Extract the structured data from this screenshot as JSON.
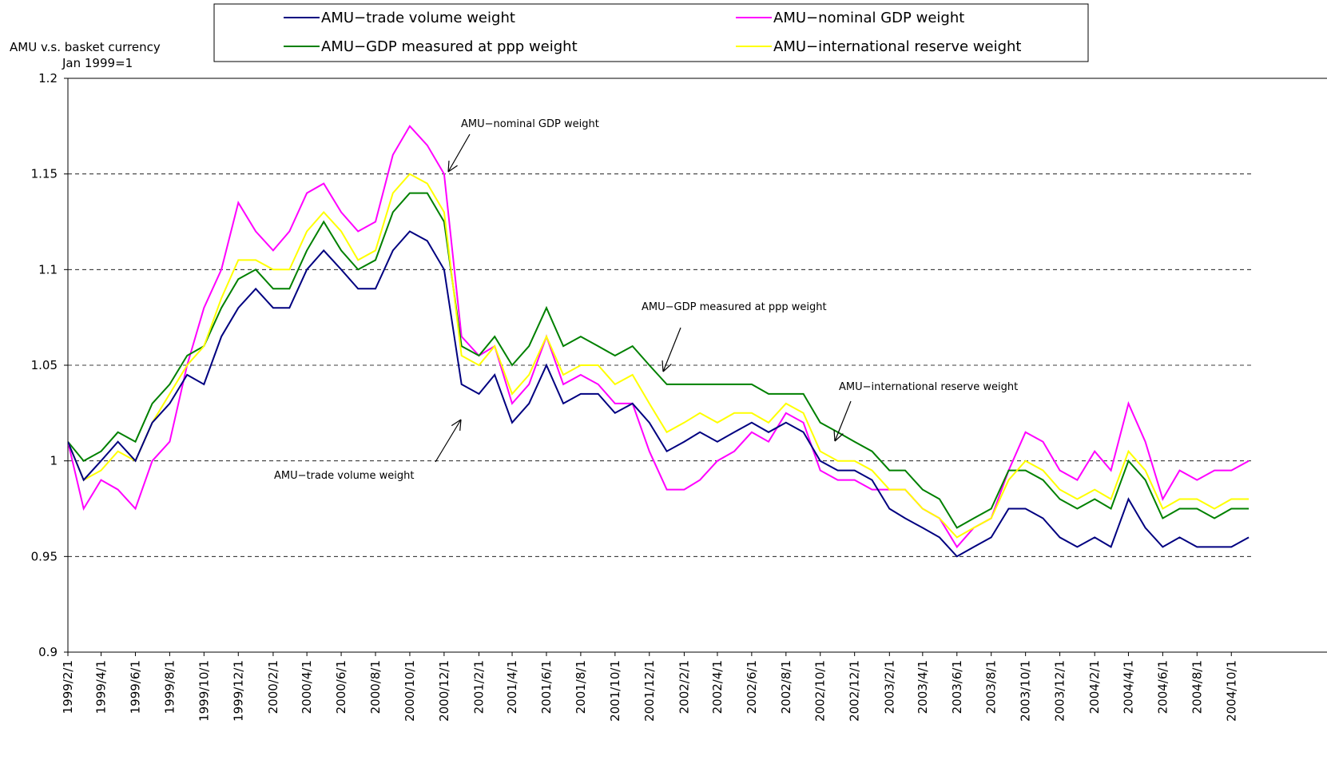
{
  "chart_data": {
    "type": "line",
    "y_label": [
      "AMU  v.s. basket currency",
      "Jan 1999=1"
    ],
    "x": [
      "1999/2/1",
      "1999/3/1",
      "1999/4/1",
      "1999/5/1",
      "1999/6/1",
      "1999/7/1",
      "1999/8/1",
      "1999/9/1",
      "1999/10/1",
      "1999/11/1",
      "1999/12/1",
      "2000/1/1",
      "2000/2/1",
      "2000/3/1",
      "2000/4/1",
      "2000/5/1",
      "2000/6/1",
      "2000/7/1",
      "2000/8/1",
      "2000/9/1",
      "2000/10/1",
      "2000/11/1",
      "2000/12/1",
      "2001/1/1",
      "2001/2/1",
      "2001/3/1",
      "2001/4/1",
      "2001/5/1",
      "2001/6/1",
      "2001/7/1",
      "2001/8/1",
      "2001/9/1",
      "2001/10/1",
      "2001/11/1",
      "2001/12/1",
      "2002/1/1",
      "2002/2/1",
      "2002/3/1",
      "2002/4/1",
      "2002/5/1",
      "2002/6/1",
      "2002/7/1",
      "2002/8/1",
      "2002/9/1",
      "2002/10/1",
      "2002/11/1",
      "2002/12/1",
      "2003/1/1",
      "2003/2/1",
      "2003/3/1",
      "2003/4/1",
      "2003/5/1",
      "2003/6/1",
      "2003/7/1",
      "2003/8/1",
      "2003/9/1",
      "2003/10/1",
      "2003/11/1",
      "2003/12/1",
      "2004/1/1",
      "2004/2/1",
      "2004/3/1",
      "2004/4/1",
      "2004/5/1",
      "2004/6/1",
      "2004/7/1",
      "2004/8/1",
      "2004/9/1",
      "2004/10/1",
      "2004/11/1"
    ],
    "xlim": [
      "1999/2/1",
      "2004/11/8"
    ],
    "xticks": [
      "1999/2/1",
      "1999/4/1",
      "1999/6/1",
      "1999/8/1",
      "1999/10/1",
      "1999/12/1",
      "2000/2/1",
      "2000/4/1",
      "2000/6/1",
      "2000/8/1",
      "2000/10/1",
      "2000/12/1",
      "2001/2/1",
      "2001/4/1",
      "2001/6/1",
      "2001/8/1",
      "2001/10/1",
      "2001/12/1",
      "2002/2/1",
      "2002/4/1",
      "2002/6/1",
      "2002/8/1",
      "2002/10/1",
      "2002/12/1",
      "2003/2/1",
      "2003/4/1",
      "2003/6/1",
      "2003/8/1",
      "2003/10/1",
      "2003/12/1",
      "2004/2/1",
      "2004/4/1",
      "2004/6/1",
      "2004/8/1",
      "2004/10/1"
    ],
    "ylim": [
      0.9,
      1.2
    ],
    "yticks": [
      0.9,
      0.95,
      1,
      1.05,
      1.1,
      1.15,
      1.2
    ],
    "grid": true,
    "series": [
      {
        "name": "AMU−trade volume weight",
        "color": "#000080",
        "values": [
          1.01,
          0.99,
          1.0,
          1.01,
          1.0,
          1.02,
          1.03,
          1.045,
          1.04,
          1.065,
          1.08,
          1.09,
          1.08,
          1.08,
          1.1,
          1.11,
          1.1,
          1.09,
          1.09,
          1.11,
          1.12,
          1.115,
          1.1,
          1.04,
          1.035,
          1.045,
          1.02,
          1.03,
          1.05,
          1.03,
          1.035,
          1.035,
          1.025,
          1.03,
          1.02,
          1.005,
          1.01,
          1.015,
          1.01,
          1.015,
          1.02,
          1.015,
          1.02,
          1.015,
          1.0,
          0.995,
          0.995,
          0.99,
          0.975,
          0.97,
          0.965,
          0.96,
          0.95,
          0.955,
          0.96,
          0.975,
          0.975,
          0.97,
          0.96,
          0.955,
          0.96,
          0.955,
          0.98,
          0.965,
          0.955,
          0.96,
          0.955,
          0.955,
          0.955,
          0.96
        ]
      },
      {
        "name": "AMU−nominal GDP weight",
        "color": "#ff00ff",
        "values": [
          1.01,
          0.975,
          0.99,
          0.985,
          0.975,
          1.0,
          1.01,
          1.05,
          1.08,
          1.1,
          1.135,
          1.12,
          1.11,
          1.12,
          1.14,
          1.145,
          1.13,
          1.12,
          1.125,
          1.16,
          1.175,
          1.165,
          1.15,
          1.065,
          1.055,
          1.06,
          1.03,
          1.04,
          1.065,
          1.04,
          1.045,
          1.04,
          1.03,
          1.03,
          1.005,
          0.985,
          0.985,
          0.99,
          1.0,
          1.005,
          1.015,
          1.01,
          1.025,
          1.02,
          0.995,
          0.99,
          0.99,
          0.985,
          0.985,
          0.985,
          0.975,
          0.97,
          0.955,
          0.965,
          0.97,
          0.995,
          1.015,
          1.01,
          0.995,
          0.99,
          1.005,
          0.995,
          1.03,
          1.01,
          0.98,
          0.995,
          0.99,
          0.995,
          0.995,
          1.0
        ]
      },
      {
        "name": "AMU−GDP measured at ppp weight",
        "color": "#008000",
        "values": [
          1.01,
          1.0,
          1.005,
          1.015,
          1.01,
          1.03,
          1.04,
          1.055,
          1.06,
          1.08,
          1.095,
          1.1,
          1.09,
          1.09,
          1.11,
          1.125,
          1.11,
          1.1,
          1.105,
          1.13,
          1.14,
          1.14,
          1.125,
          1.06,
          1.055,
          1.065,
          1.05,
          1.06,
          1.08,
          1.06,
          1.065,
          1.06,
          1.055,
          1.06,
          1.05,
          1.04,
          1.04,
          1.04,
          1.04,
          1.04,
          1.04,
          1.035,
          1.035,
          1.035,
          1.02,
          1.015,
          1.01,
          1.005,
          0.995,
          0.995,
          0.985,
          0.98,
          0.965,
          0.97,
          0.975,
          0.995,
          0.995,
          0.99,
          0.98,
          0.975,
          0.98,
          0.975,
          1.0,
          0.99,
          0.97,
          0.975,
          0.975,
          0.97,
          0.975,
          0.975
        ]
      },
      {
        "name": "AMU−international reserve weight",
        "color": "#ffff00",
        "values": [
          1.01,
          0.99,
          0.995,
          1.005,
          1.0,
          1.02,
          1.035,
          1.05,
          1.06,
          1.085,
          1.105,
          1.105,
          1.1,
          1.1,
          1.12,
          1.13,
          1.12,
          1.105,
          1.11,
          1.14,
          1.15,
          1.145,
          1.13,
          1.055,
          1.05,
          1.06,
          1.035,
          1.045,
          1.065,
          1.045,
          1.05,
          1.05,
          1.04,
          1.045,
          1.03,
          1.015,
          1.02,
          1.025,
          1.02,
          1.025,
          1.025,
          1.02,
          1.03,
          1.025,
          1.005,
          1.0,
          1.0,
          0.995,
          0.985,
          0.985,
          0.975,
          0.97,
          0.96,
          0.965,
          0.97,
          0.99,
          1.0,
          0.995,
          0.985,
          0.98,
          0.985,
          0.98,
          1.005,
          0.995,
          0.975,
          0.98,
          0.98,
          0.975,
          0.98,
          0.98
        ]
      }
    ],
    "annotations": [
      "AMU−nominal GDP weight",
      "AMU−GDP measured at ppp weight",
      "AMU−international reserve weight",
      "AMU−trade volume weight"
    ]
  }
}
